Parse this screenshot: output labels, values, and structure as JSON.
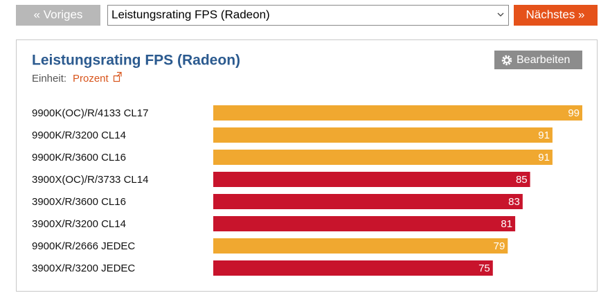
{
  "nav": {
    "previous": "« Voriges",
    "selected": "Leistungsrating FPS (Radeon)",
    "next": "Nächstes »"
  },
  "chart_data": {
    "type": "bar",
    "orientation": "horizontal",
    "title": "Leistungsrating FPS (Radeon)",
    "unit_label": "Einheit:",
    "unit": "Prozent",
    "edit_button": "Bearbeiten",
    "categories": [
      "9900K(OC)/R/4133 CL17",
      "9900K/R/3200 CL14",
      "9900K/R/3600 CL16",
      "3900X(OC)/R/3733 CL14",
      "3900X/R/3600 CL16",
      "3900X/R/3200 CL14",
      "9900K/R/2666 JEDEC",
      "3900X/R/3200 JEDEC"
    ],
    "values": [
      99,
      91,
      91,
      85,
      83,
      81,
      79,
      75
    ],
    "colors": [
      "#f0a830",
      "#f0a830",
      "#f0a830",
      "#c8142c",
      "#c8142c",
      "#c8142c",
      "#f0a830",
      "#c8142c"
    ]
  }
}
